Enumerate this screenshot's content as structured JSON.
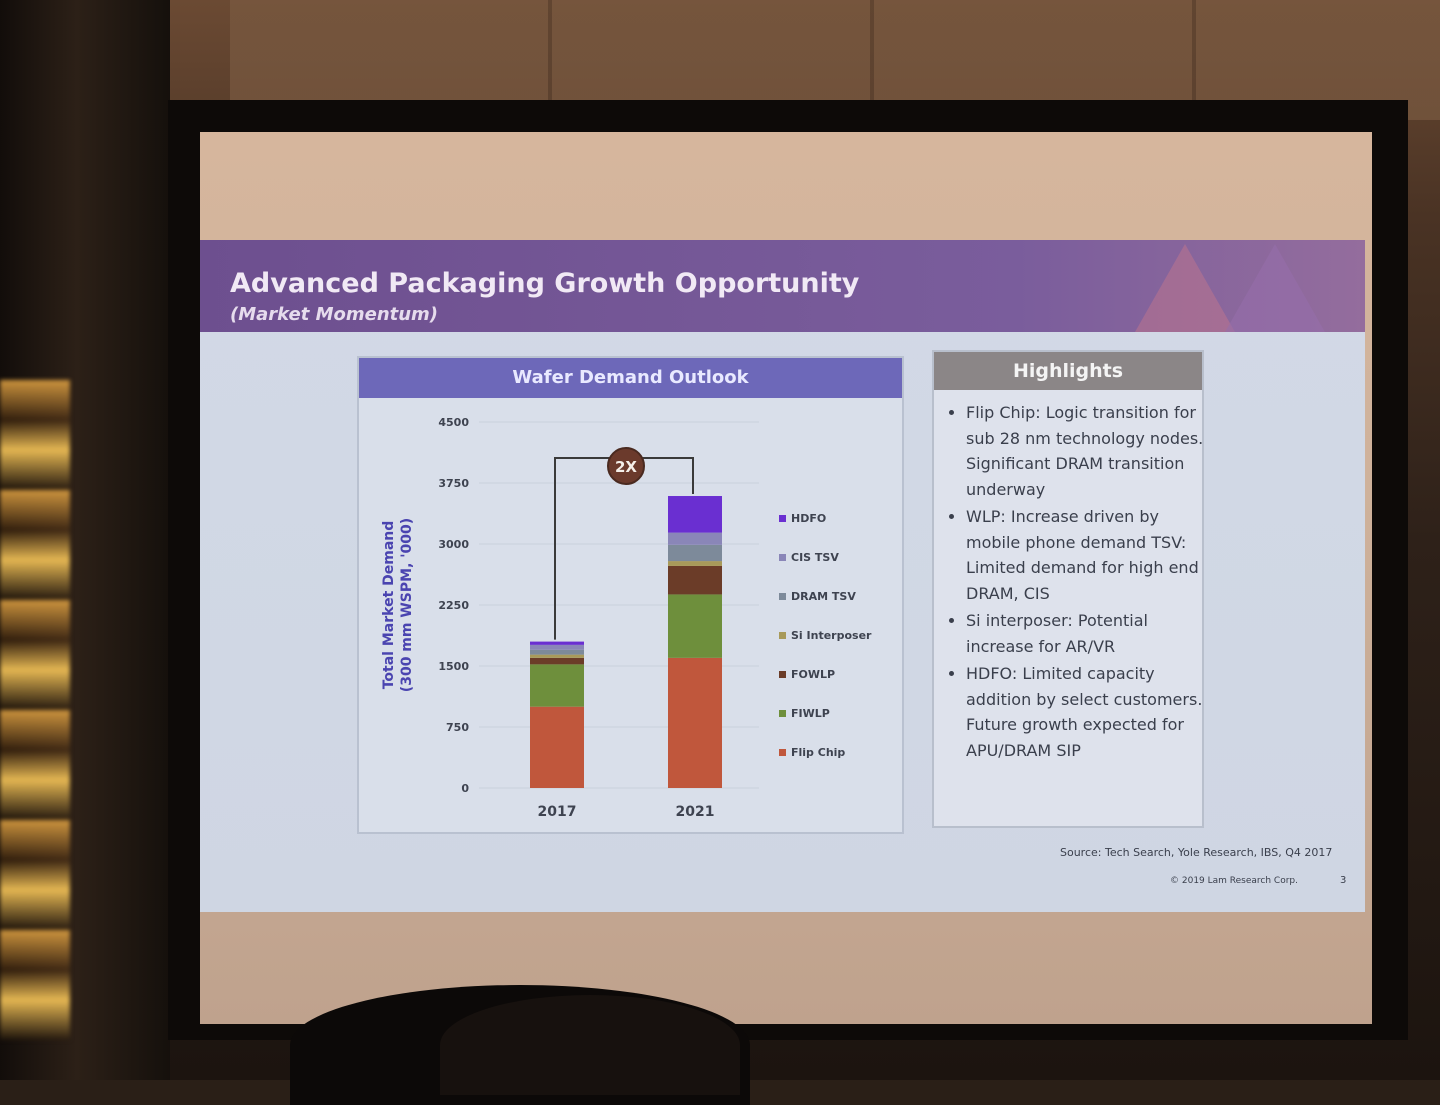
{
  "slide": {
    "title": "Advanced Packaging Growth Opportunity",
    "subtitle": "(Market Momentum)",
    "source": "Source: Tech Search, Yole Research, IBS, Q4 2017",
    "copyright": "© 2019 Lam Research Corp.",
    "page_number": "3"
  },
  "chart_panel": {
    "header": "Wafer Demand Outlook"
  },
  "chart_data": {
    "type": "bar",
    "stacked": true,
    "categories": [
      "2017",
      "2021"
    ],
    "ylabel": "Total Market Demand\n(300 mm WSPM, '000)",
    "ylim": [
      0,
      4500
    ],
    "yticks": [
      0,
      750,
      1500,
      2250,
      3000,
      3750,
      4500
    ],
    "annotation": "2X",
    "legend_position": "right",
    "series": [
      {
        "name": "Flip Chip",
        "values": [
          1000,
          1600
        ],
        "color": "#c0573c"
      },
      {
        "name": "FIWLP",
        "values": [
          520,
          780
        ],
        "color": "#6e8f3c"
      },
      {
        "name": "FOWLP",
        "values": [
          80,
          350
        ],
        "color": "#6b3c28"
      },
      {
        "name": "Si Interposer",
        "values": [
          40,
          60
        ],
        "color": "#a89a5a"
      },
      {
        "name": "DRAM TSV",
        "values": [
          60,
          200
        ],
        "color": "#7d8a9a"
      },
      {
        "name": "CIS TSV",
        "values": [
          60,
          150
        ],
        "color": "#8a86b8"
      },
      {
        "name": "HDFO",
        "values": [
          40,
          450
        ],
        "color": "#6a2fd1"
      }
    ]
  },
  "highlights": {
    "header": "Highlights",
    "items": [
      "Flip Chip: Logic transition for sub 28 nm technology nodes. Significant DRAM transition underway",
      "WLP: Increase driven by mobile phone demand TSV: Limited demand for high end DRAM, CIS",
      "Si interposer: Potential increase for AR/VR",
      "HDFO: Limited capacity addition by select customers. Future growth expected for APU/DRAM SIP"
    ]
  }
}
